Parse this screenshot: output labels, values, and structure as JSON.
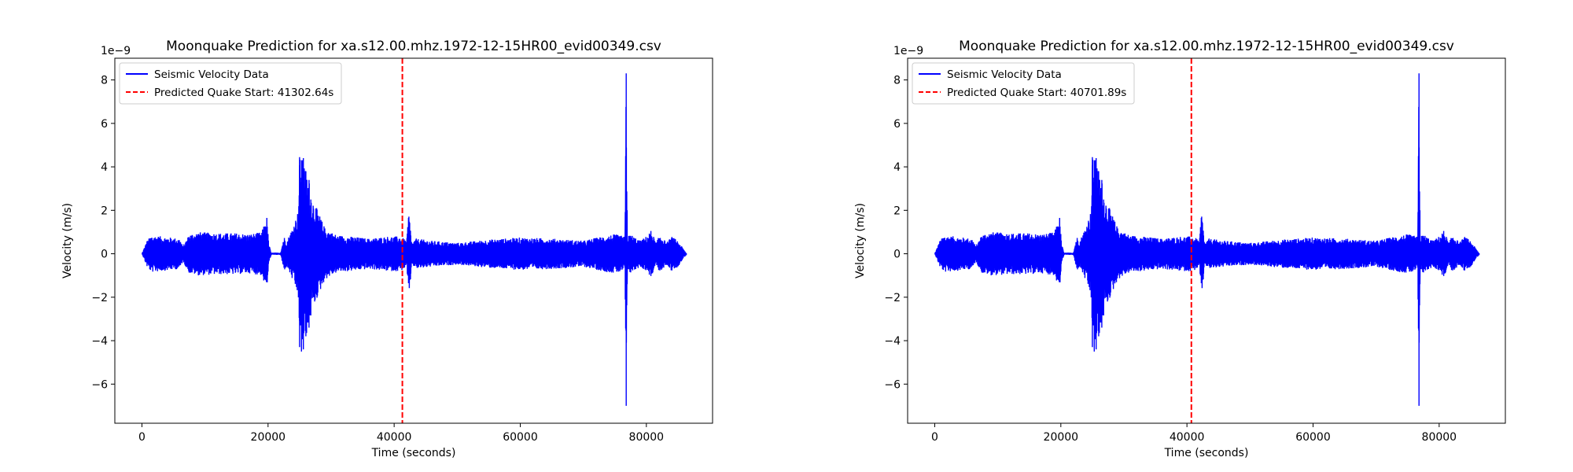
{
  "chart_data": [
    {
      "type": "line",
      "title": "Moonquake Prediction for xa.s12.00.mhz.1972-12-15HR00_evid00349.csv",
      "xlabel": "Time (seconds)",
      "ylabel": "Velocity (m/s)",
      "y_offset_label": "1e−9",
      "xlim": [
        -4300,
        90500
      ],
      "ylim": [
        -7.8,
        9.0
      ],
      "x_ticks": [
        0,
        20000,
        40000,
        60000,
        80000
      ],
      "x_tick_labels": [
        "0",
        "20000",
        "40000",
        "60000",
        "80000"
      ],
      "y_ticks": [
        -6,
        -4,
        -2,
        0,
        2,
        4,
        6,
        8
      ],
      "y_tick_labels": [
        "−6",
        "−4",
        "−2",
        "0",
        "2",
        "4",
        "6",
        "8"
      ],
      "grid": false,
      "legend_position": "upper left",
      "series": [
        {
          "name": "Seismic Velocity Data",
          "color": "#0000ff",
          "style": "solid",
          "x_range": [
            0,
            86400
          ],
          "envelope_x": [
            0,
            800,
            1500,
            3000,
            6000,
            6500,
            7500,
            9000,
            12000,
            15000,
            17000,
            19000,
            19800,
            20100,
            20500,
            21000,
            22000,
            22500,
            23000,
            24000,
            24800,
            25000,
            25300,
            25600,
            26000,
            26500,
            27000,
            28000,
            29000,
            30000,
            31000,
            33000,
            36000,
            39000,
            41000,
            42000,
            42300,
            42800,
            43500,
            46000,
            50000,
            55000,
            60000,
            65000,
            70000,
            73000,
            75000,
            76600,
            76800,
            77000,
            77500,
            79000,
            80000,
            80800,
            81500,
            82200,
            83200,
            84000,
            85000,
            86400
          ],
          "envelope_upper": [
            0.0,
            0.6,
            0.85,
            0.8,
            0.7,
            0.35,
            0.9,
            1.0,
            0.95,
            0.95,
            0.9,
            1.0,
            1.75,
            0.5,
            0.05,
            0.05,
            0.05,
            0.8,
            0.6,
            1.3,
            2.0,
            4.45,
            4.3,
            4.4,
            3.8,
            3.4,
            2.6,
            1.9,
            1.2,
            1.0,
            0.85,
            0.8,
            0.7,
            0.8,
            0.8,
            0.6,
            2.0,
            0.5,
            0.7,
            0.6,
            0.5,
            0.65,
            0.75,
            0.7,
            0.6,
            0.8,
            0.9,
            0.8,
            8.3,
            0.8,
            0.9,
            0.6,
            0.8,
            1.1,
            0.5,
            0.9,
            0.5,
            0.8,
            0.6,
            0.0
          ],
          "envelope_lower": [
            0.0,
            -0.6,
            -0.85,
            -0.8,
            -0.7,
            -0.35,
            -0.9,
            -1.0,
            -0.95,
            -0.95,
            -0.9,
            -1.0,
            -1.7,
            -0.5,
            -0.05,
            -0.05,
            -0.05,
            -0.8,
            -0.6,
            -1.3,
            -2.0,
            -4.3,
            -4.5,
            -4.4,
            -3.8,
            -3.4,
            -2.6,
            -1.9,
            -1.2,
            -1.0,
            -0.85,
            -0.8,
            -0.7,
            -0.8,
            -0.8,
            -0.6,
            -2.2,
            -0.5,
            -0.7,
            -0.6,
            -0.5,
            -0.65,
            -0.75,
            -0.7,
            -0.6,
            -0.8,
            -0.9,
            -0.8,
            -7.0,
            -0.8,
            -0.9,
            -0.6,
            -0.8,
            -1.1,
            -0.5,
            -0.9,
            -0.5,
            -0.8,
            -0.6,
            0.0
          ]
        },
        {
          "name": "Predicted Quake Start: 41302.64s",
          "color": "#ff0000",
          "style": "dashed",
          "x": 41302.64
        }
      ]
    },
    {
      "type": "line",
      "title": "Moonquake Prediction for xa.s12.00.mhz.1972-12-15HR00_evid00349.csv",
      "xlabel": "Time (seconds)",
      "ylabel": "Velocity (m/s)",
      "y_offset_label": "1e−9",
      "xlim": [
        -4300,
        90500
      ],
      "ylim": [
        -7.8,
        9.0
      ],
      "x_ticks": [
        0,
        20000,
        40000,
        60000,
        80000
      ],
      "x_tick_labels": [
        "0",
        "20000",
        "40000",
        "60000",
        "80000"
      ],
      "y_ticks": [
        -6,
        -4,
        -2,
        0,
        2,
        4,
        6,
        8
      ],
      "y_tick_labels": [
        "−6",
        "−4",
        "−2",
        "0",
        "2",
        "4",
        "6",
        "8"
      ],
      "grid": false,
      "legend_position": "upper left",
      "series": [
        {
          "name": "Seismic Velocity Data",
          "color": "#0000ff",
          "style": "solid",
          "x_range": [
            0,
            86400
          ],
          "envelope_x": [
            0,
            800,
            1500,
            3000,
            6000,
            6500,
            7500,
            9000,
            12000,
            15000,
            17000,
            19000,
            19800,
            20100,
            20500,
            21000,
            22000,
            22500,
            23000,
            24000,
            24800,
            25000,
            25300,
            25600,
            26000,
            26500,
            27000,
            28000,
            29000,
            30000,
            31000,
            33000,
            36000,
            39000,
            41000,
            42000,
            42300,
            42800,
            43500,
            46000,
            50000,
            55000,
            60000,
            65000,
            70000,
            73000,
            75000,
            76600,
            76800,
            77000,
            77500,
            79000,
            80000,
            80800,
            81500,
            82200,
            83200,
            84000,
            85000,
            86400
          ],
          "envelope_upper": [
            0.0,
            0.6,
            0.85,
            0.8,
            0.7,
            0.35,
            0.9,
            1.0,
            0.95,
            0.95,
            0.9,
            1.0,
            1.75,
            0.5,
            0.05,
            0.05,
            0.05,
            0.8,
            0.6,
            1.3,
            2.0,
            4.45,
            4.3,
            4.4,
            3.8,
            3.4,
            2.6,
            1.9,
            1.2,
            1.0,
            0.85,
            0.8,
            0.7,
            0.8,
            0.8,
            0.6,
            2.0,
            0.5,
            0.7,
            0.6,
            0.5,
            0.65,
            0.75,
            0.7,
            0.6,
            0.8,
            0.9,
            0.8,
            8.3,
            0.8,
            0.9,
            0.6,
            0.8,
            1.1,
            0.5,
            0.9,
            0.5,
            0.8,
            0.6,
            0.0
          ],
          "envelope_lower": [
            0.0,
            -0.6,
            -0.85,
            -0.8,
            -0.7,
            -0.35,
            -0.9,
            -1.0,
            -0.95,
            -0.95,
            -0.9,
            -1.0,
            -1.7,
            -0.5,
            -0.05,
            -0.05,
            -0.05,
            -0.8,
            -0.6,
            -1.3,
            -2.0,
            -4.3,
            -4.5,
            -4.4,
            -3.8,
            -3.4,
            -2.6,
            -1.9,
            -1.2,
            -1.0,
            -0.85,
            -0.8,
            -0.7,
            -0.8,
            -0.8,
            -0.6,
            -2.2,
            -0.5,
            -0.7,
            -0.6,
            -0.5,
            -0.65,
            -0.75,
            -0.7,
            -0.6,
            -0.8,
            -0.9,
            -0.8,
            -7.0,
            -0.8,
            -0.9,
            -0.6,
            -0.8,
            -1.1,
            -0.5,
            -0.9,
            -0.5,
            -0.8,
            -0.6,
            0.0
          ]
        },
        {
          "name": "Predicted Quake Start: 40701.89s",
          "color": "#ff0000",
          "style": "dashed",
          "x": 40701.89
        }
      ]
    }
  ]
}
